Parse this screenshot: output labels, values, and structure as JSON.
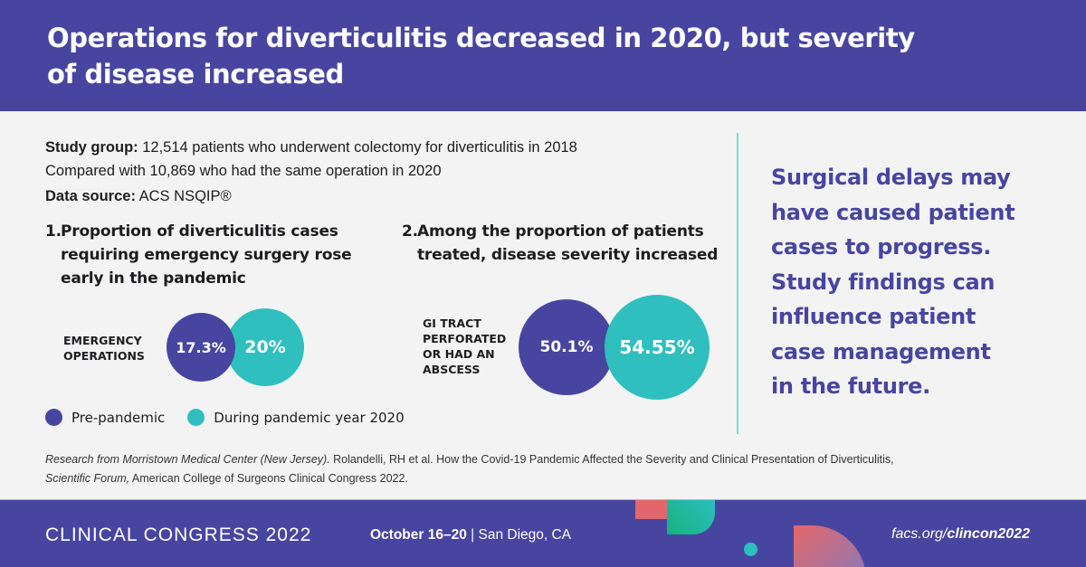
{
  "header": {
    "title": "Operations for diverticulitis decreased in 2020, but severity of disease increased"
  },
  "study": {
    "group_label": "Study group:",
    "group_text": "12,514 patients who underwent colectomy for diverticulitis in 2018",
    "compared_text": "Compared with 10,869 who had the same operation in 2020",
    "source_label": "Data source:",
    "source_text": "ACS NSQIP®"
  },
  "sections": [
    {
      "num": "1.",
      "title": "Proportion of diverticulitis cases requiring emergency surgery rose early in the pandemic",
      "metric_label": "EMERGENCY OPERATIONS",
      "pre_value": "17.3%",
      "during_value": "20%"
    },
    {
      "num": "2.",
      "title": "Among the proportion of patients treated, disease severity increased",
      "metric_label": "GI TRACT PERFORATED OR HAD AN ABSCESS",
      "pre_value": "50.1%",
      "during_value": "54.55%"
    }
  ],
  "legend": {
    "pre": {
      "label": "Pre-pandemic",
      "color": "#4845a1"
    },
    "during": {
      "label": "During pandemic year 2020",
      "color": "#2fbfbf"
    }
  },
  "takeaway": {
    "lines": [
      "Surgical delays may",
      "have caused patient",
      "cases to progress.",
      "Study findings can",
      "influence patient",
      "case management",
      "in the future."
    ]
  },
  "citation": {
    "italic_lead": "Research from Morristown Medical Center (New Jersey).",
    "text": " Rolandelli, RH et al. How the Covid-19 Pandemic Affected the Severity and Clinical Presentation of Diverticulitis,",
    "italic_forum": "Scientific Forum,",
    "text2": " American College of Surgeons Clinical Congress 2022."
  },
  "footer": {
    "brand": "CLINICAL CONGRESS 2022",
    "dates": "October 16–20",
    "separator": " | ",
    "location": "San Diego, CA",
    "url_prefix": "facs.org/",
    "url_bold": "clincon2022"
  },
  "colors": {
    "brand_purple": "#4845a1",
    "teal": "#2fbfbf",
    "background": "#f3f3f3"
  },
  "chart_data": [
    {
      "type": "bubble-comparison",
      "title": "Proportion of diverticulitis cases requiring emergency surgery rose early in the pandemic",
      "categories": [
        "Pre-pandemic",
        "During pandemic year 2020"
      ],
      "metric": "Emergency operations",
      "values": [
        17.3,
        20
      ],
      "unit": "%"
    },
    {
      "type": "bubble-comparison",
      "title": "Among the proportion of patients treated, disease severity increased",
      "categories": [
        "Pre-pandemic",
        "During pandemic year 2020"
      ],
      "metric": "GI tract perforated or had an abscess",
      "values": [
        50.1,
        54.55
      ],
      "unit": "%"
    }
  ]
}
